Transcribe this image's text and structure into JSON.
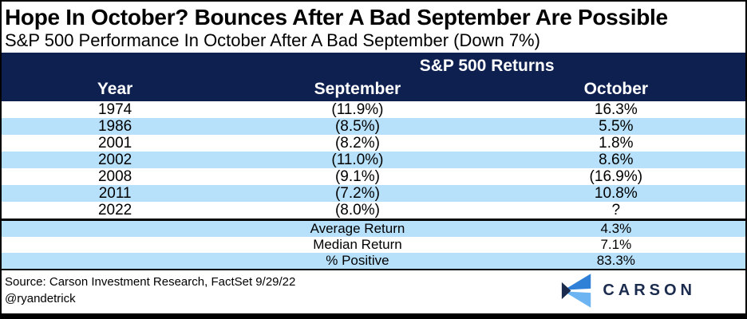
{
  "chart_data": {
    "type": "table",
    "title": "Hope In October? Bounces After A Bad September Are Possible",
    "subtitle": "S&P 500 Performance In October After A Bad September (Down 7%)",
    "group_header": "S&P 500 Returns",
    "columns": [
      "Year",
      "September",
      "October"
    ],
    "rows": [
      {
        "year": "1974",
        "september": "(11.9%)",
        "october": "16.3%"
      },
      {
        "year": "1986",
        "september": "(8.5%)",
        "october": "5.5%"
      },
      {
        "year": "2001",
        "september": "(8.2%)",
        "october": "1.8%"
      },
      {
        "year": "2002",
        "september": "(11.0%)",
        "october": "8.6%"
      },
      {
        "year": "2008",
        "september": "(9.1%)",
        "october": "(16.9%)"
      },
      {
        "year": "2011",
        "september": "(7.2%)",
        "october": "10.8%"
      },
      {
        "year": "2022",
        "september": "(8.0%)",
        "october": "?"
      }
    ],
    "summary": [
      {
        "label": "Average Return",
        "value": "4.3%"
      },
      {
        "label": "Median Return",
        "value": "7.1%"
      },
      {
        "label": "% Positive",
        "value": "83.3%"
      }
    ]
  },
  "footer": {
    "source": "Source: Carson Investment Research, FactSet 9/29/22",
    "handle": "@ryandetrick",
    "logo_text": "CARSON"
  },
  "colors": {
    "header_bg": "#0E2050",
    "band_blue": "#B7E1FB",
    "negative_red": "#A00308",
    "positive_green": "#00A84F",
    "logo_navy": "#1B2B4D",
    "logo_blue": "#2F81D8",
    "logo_light_blue": "#6CB5F2",
    "frame_border": "#000000"
  }
}
